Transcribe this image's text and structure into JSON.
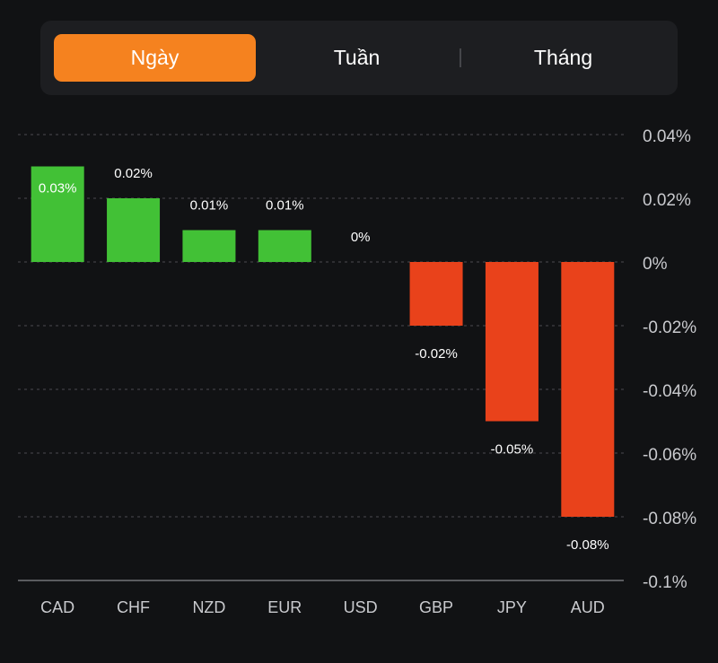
{
  "tabs": [
    {
      "label": "Ngày",
      "active": true
    },
    {
      "label": "Tuần",
      "active": false
    },
    {
      "label": "Tháng",
      "active": false
    }
  ],
  "colors": {
    "positive": "#42c136",
    "negative": "#e9421b",
    "active_tab": "#f5821f",
    "grid": "#4a4b4f",
    "axis_text": "#c9cace"
  },
  "chart_data": {
    "type": "bar",
    "categories": [
      "CAD",
      "CHF",
      "NZD",
      "EUR",
      "USD",
      "GBP",
      "JPY",
      "AUD"
    ],
    "values": [
      0.03,
      0.02,
      0.01,
      0.01,
      0,
      -0.02,
      -0.05,
      -0.08
    ],
    "data_labels": [
      "0.03%",
      "0.02%",
      "0.01%",
      "0.01%",
      "0%",
      "-0.02%",
      "-0.05%",
      "-0.08%"
    ],
    "yticks": [
      0.04,
      0.02,
      0,
      -0.02,
      -0.04,
      -0.06,
      -0.08,
      -0.1
    ],
    "ytick_labels": [
      "0.04%",
      "0.02%",
      "0%",
      "-0.02%",
      "-0.04%",
      "-0.06%",
      "-0.08%",
      "-0.1%"
    ],
    "ylim": [
      -0.1,
      0.04
    ],
    "y_axis_side": "right",
    "grid": true,
    "title": "",
    "xlabel": "",
    "ylabel": ""
  }
}
